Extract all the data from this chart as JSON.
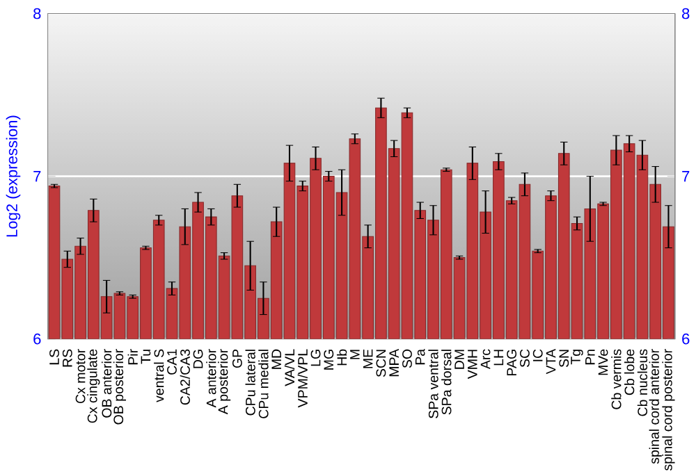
{
  "chart_data": {
    "type": "bar",
    "ylabel": "Log2 (expression)",
    "categories": [
      "LS",
      "RS",
      "Cx motor",
      "Cx cingulate",
      "OB anterior",
      "OB posterior",
      "Pir",
      "Tu",
      "ventral S",
      "CA1",
      "CA2/CA3",
      "DG",
      "A anterior",
      "A posterior",
      "GP",
      "CPu lateral",
      "CPu medial",
      "MD",
      "VA/VL",
      "VPM/VPL",
      "LG",
      "MG",
      "Hb",
      "M",
      "ME",
      "SCN",
      "MPA",
      "SO",
      "Pa",
      "SPa ventral",
      "SPa dorsal",
      "DM",
      "VMH",
      "Arc",
      "LH",
      "PAG",
      "SC",
      "IC",
      "VTA",
      "SN",
      "Tg",
      "Pn",
      "MVe",
      "Cb vermis",
      "Cb lobe",
      "Cb nucleus",
      "spinal cord anterior",
      "spinal cord posterior"
    ],
    "values": [
      6.94,
      6.49,
      6.57,
      6.79,
      6.26,
      6.28,
      6.26,
      6.56,
      6.73,
      6.31,
      6.69,
      6.84,
      6.75,
      6.51,
      6.88,
      6.45,
      6.25,
      6.72,
      7.08,
      6.94,
      7.11,
      7.0,
      6.9,
      7.23,
      6.63,
      7.42,
      7.17,
      7.39,
      6.79,
      6.73,
      7.04,
      6.5,
      7.08,
      6.78,
      7.09,
      6.85,
      6.95,
      6.54,
      6.88,
      7.14,
      6.71,
      6.8,
      6.83,
      7.16,
      7.2,
      7.13,
      6.95,
      6.69
    ],
    "errors": [
      0.01,
      0.05,
      0.05,
      0.07,
      0.1,
      0.01,
      0.01,
      0.01,
      0.03,
      0.04,
      0.11,
      0.06,
      0.05,
      0.02,
      0.07,
      0.15,
      0.1,
      0.09,
      0.11,
      0.03,
      0.07,
      0.03,
      0.14,
      0.03,
      0.07,
      0.06,
      0.05,
      0.03,
      0.05,
      0.09,
      0.01,
      0.01,
      0.1,
      0.13,
      0.05,
      0.02,
      0.07,
      0.01,
      0.03,
      0.07,
      0.04,
      0.2,
      0.01,
      0.09,
      0.05,
      0.09,
      0.11,
      0.13
    ],
    "color": "#c0393b",
    "ylim": [
      6,
      8
    ],
    "yticks": [
      6,
      7,
      8
    ],
    "y2lim": [
      6,
      8
    ],
    "y2ticks": [
      6,
      7,
      8
    ],
    "grid": "y"
  }
}
